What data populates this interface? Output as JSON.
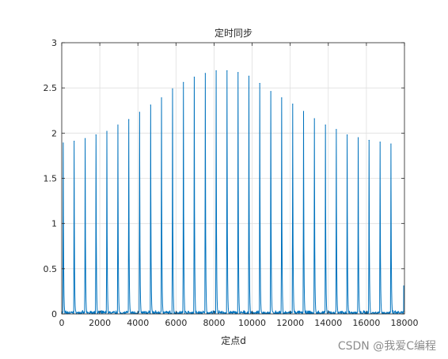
{
  "watermark": "CSDN @我爱C编程",
  "chart_data": {
    "type": "line",
    "title": "定时同步",
    "xlabel": "定点d",
    "ylabel": "",
    "xlim": [
      0,
      18000
    ],
    "ylim": [
      0,
      3
    ],
    "xticks": [
      0,
      2000,
      4000,
      6000,
      8000,
      10000,
      12000,
      14000,
      16000,
      18000
    ],
    "yticks": [
      0,
      0.5,
      1,
      1.5,
      2,
      2.5,
      3
    ],
    "xtick_labels": [
      "0",
      "2000",
      "4000",
      "6000",
      "8000",
      "10000",
      "12000",
      "14000",
      "16000",
      "18000"
    ],
    "ytick_labels": [
      "0",
      "0.5",
      "1",
      "1.5",
      "2",
      "2.5",
      "3"
    ],
    "grid": true,
    "line_color": "#0072BD",
    "series": [
      {
        "name": "",
        "peaks": [
          {
            "x": 80,
            "y": 1.89
          },
          {
            "x": 650,
            "y": 1.91
          },
          {
            "x": 1230,
            "y": 1.94
          },
          {
            "x": 1800,
            "y": 1.98
          },
          {
            "x": 2370,
            "y": 2.02
          },
          {
            "x": 2950,
            "y": 2.09
          },
          {
            "x": 3520,
            "y": 2.15
          },
          {
            "x": 4090,
            "y": 2.23
          },
          {
            "x": 4670,
            "y": 2.31
          },
          {
            "x": 5240,
            "y": 2.39
          },
          {
            "x": 5820,
            "y": 2.49
          },
          {
            "x": 6390,
            "y": 2.56
          },
          {
            "x": 6960,
            "y": 2.62
          },
          {
            "x": 7540,
            "y": 2.66
          },
          {
            "x": 8110,
            "y": 2.69
          },
          {
            "x": 8680,
            "y": 2.69
          },
          {
            "x": 9260,
            "y": 2.67
          },
          {
            "x": 9830,
            "y": 2.63
          },
          {
            "x": 10400,
            "y": 2.55
          },
          {
            "x": 10980,
            "y": 2.46
          },
          {
            "x": 11550,
            "y": 2.39
          },
          {
            "x": 12130,
            "y": 2.32
          },
          {
            "x": 12700,
            "y": 2.24
          },
          {
            "x": 13270,
            "y": 2.16
          },
          {
            "x": 13850,
            "y": 2.09
          },
          {
            "x": 14420,
            "y": 2.04
          },
          {
            "x": 14990,
            "y": 1.98
          },
          {
            "x": 15570,
            "y": 1.95
          },
          {
            "x": 16140,
            "y": 1.92
          },
          {
            "x": 16720,
            "y": 1.9
          },
          {
            "x": 17290,
            "y": 1.88
          }
        ],
        "final_value": {
          "x": 17960,
          "y": 0.31
        },
        "baseline_noise": [
          0,
          0.04
        ]
      }
    ]
  }
}
